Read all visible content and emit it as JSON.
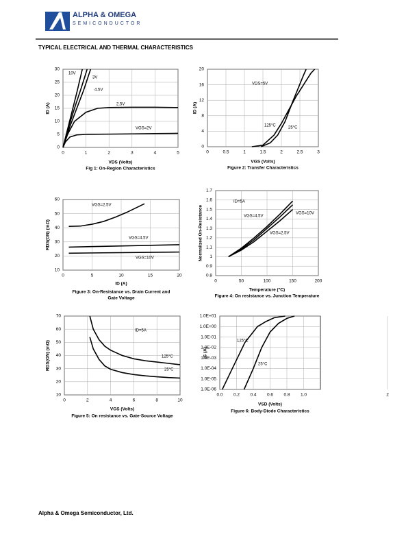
{
  "header": {
    "company": "ALPHA & OMEGA",
    "subtitle": "SEMICONDUCTOR"
  },
  "section_title": "TYPICAL ELECTRICAL AND THERMAL CHARACTERISTICS",
  "footer": "Alpha & Omega Semiconductor, Ltd.",
  "chart_data": [
    {
      "type": "line",
      "title": "Fig 1: On-Region Characteristics",
      "x_label": "VDS (Volts)",
      "y_label": "ID (A)",
      "grid": true,
      "xlim": [
        0,
        5
      ],
      "xticks": [
        0,
        1,
        2,
        3,
        4,
        5
      ],
      "ylim": [
        0,
        30
      ],
      "yticks": [
        0,
        5,
        10,
        15,
        20,
        25,
        30
      ],
      "series": [
        {
          "name": "10V",
          "color": "#000000",
          "x": [
            0,
            0.2,
            0.4,
            0.6,
            0.84
          ],
          "values": [
            0,
            7,
            14,
            21,
            30
          ]
        },
        {
          "name": "3V",
          "color": "#000000",
          "x": [
            0,
            0.3,
            0.6,
            0.9,
            1.2
          ],
          "values": [
            0,
            8,
            15,
            22,
            30
          ]
        },
        {
          "name": "4.5V",
          "color": "#000000",
          "x": [
            0,
            0.25,
            0.5,
            0.8,
            1.05
          ],
          "values": [
            0,
            8,
            15,
            23,
            30
          ]
        },
        {
          "name": "2.5V",
          "color": "#000000",
          "x": [
            0,
            0.2,
            0.5,
            1,
            1.5,
            2,
            3,
            4,
            5
          ],
          "values": [
            0,
            5,
            10,
            13.5,
            15,
            15.3,
            15.4,
            15.4,
            15.3
          ]
        },
        {
          "name": "VGS=2V",
          "color": "#000000",
          "x": [
            0,
            0.1,
            0.3,
            0.6,
            1,
            2,
            3,
            4,
            5
          ],
          "values": [
            0,
            2,
            4,
            4.8,
            5,
            5.1,
            5.2,
            5.3,
            5.4
          ]
        }
      ]
    },
    {
      "type": "line",
      "title": "Figure 2: Transfer Characteristics",
      "x_label": "VGS (Volts)",
      "y_label": "ID (A)",
      "grid": true,
      "annotation": "VDS=5V",
      "xlim": [
        0,
        3
      ],
      "xticks": [
        0,
        0.5,
        1,
        1.5,
        2,
        2.5,
        3
      ],
      "ylim": [
        0,
        20
      ],
      "yticks": [
        0,
        4,
        8,
        12,
        16,
        20
      ],
      "series": [
        {
          "name": "125°C",
          "color": "#000000",
          "x": [
            1.2,
            1.5,
            1.8,
            2.0,
            2.2,
            2.4,
            2.6,
            2.8,
            2.9
          ],
          "values": [
            0,
            0.4,
            3,
            6,
            9.5,
            13,
            16,
            19,
            20
          ]
        },
        {
          "name": "25°C",
          "color": "#000000",
          "x": [
            1.45,
            1.7,
            1.9,
            2.1,
            2.3,
            2.45,
            2.6,
            2.67
          ],
          "values": [
            0,
            1,
            3,
            6.5,
            11.5,
            15,
            18.5,
            20
          ]
        }
      ]
    },
    {
      "type": "line",
      "title": [
        "Figure 3: On-Resistance vs. Drain Current and",
        "Gate Voltage"
      ],
      "x_label": "ID (A)",
      "y_label": "RDS(ON) (mΩ)",
      "grid": true,
      "xlim": [
        0,
        20
      ],
      "xticks": [
        0,
        5,
        10,
        15,
        20
      ],
      "ylim": [
        10,
        60
      ],
      "yticks": [
        10,
        20,
        30,
        40,
        50,
        60
      ],
      "series": [
        {
          "name": "VGS=2.5V",
          "color": "#000000",
          "x": [
            1,
            3,
            5,
            7,
            9,
            11,
            13,
            14
          ],
          "values": [
            41,
            41.2,
            42.5,
            44.5,
            47.5,
            51,
            55,
            57
          ]
        },
        {
          "name": "VGS=4.5V",
          "color": "#000000",
          "x": [
            1,
            20
          ],
          "values": [
            26.3,
            28
          ]
        },
        {
          "name": "VGS=10V",
          "color": "#000000",
          "x": [
            1,
            20
          ],
          "values": [
            22,
            22.8
          ]
        }
      ]
    },
    {
      "type": "line",
      "title": "Figure 4: On resistance vs. Junction Temperature",
      "x_label": "Temperature (°C)",
      "y_label": "Normalized On-Resistance",
      "grid": true,
      "annotation": "ID=5A",
      "xlim": [
        0,
        200
      ],
      "xticks": [
        0,
        50,
        100,
        150,
        200
      ],
      "ylim": [
        0.8,
        1.7
      ],
      "yticks": [
        0.8,
        0.9,
        1,
        1.1,
        1.2,
        1.3,
        1.4,
        1.5,
        1.6,
        1.7
      ],
      "series": [
        {
          "name": "VGS=10V",
          "color": "#000000",
          "x": [
            25,
            50,
            75,
            100,
            125,
            150
          ],
          "values": [
            1,
            1.09,
            1.2,
            1.32,
            1.45,
            1.59
          ]
        },
        {
          "name": "VGS=4.5V",
          "color": "#000000",
          "x": [
            25,
            50,
            75,
            100,
            125,
            150
          ],
          "values": [
            1,
            1.08,
            1.18,
            1.3,
            1.42,
            1.55
          ]
        },
        {
          "name": "VGS=2.5V",
          "color": "#000000",
          "x": [
            25,
            50,
            75,
            100,
            125,
            150
          ],
          "values": [
            1,
            1.07,
            1.16,
            1.27,
            1.38,
            1.5
          ]
        }
      ]
    },
    {
      "type": "line",
      "title": "Figure 5: On resistance vs. Gate-Source Voltage",
      "x_label": "VGS (Volts)",
      "y_label": "RDS(ON) (mΩ)",
      "grid": true,
      "annotation": "ID=5A",
      "xlim": [
        0,
        10
      ],
      "xticks": [
        0,
        2,
        4,
        6,
        8,
        10
      ],
      "ylim": [
        10,
        70
      ],
      "yticks": [
        10,
        20,
        30,
        40,
        50,
        60,
        70
      ],
      "series": [
        {
          "name": "125°C",
          "color": "#000000",
          "x": [
            2.2,
            2.5,
            3,
            3.5,
            4,
            5,
            6,
            7,
            8,
            9,
            10
          ],
          "values": [
            70,
            60,
            52,
            47,
            44,
            40,
            37.5,
            36,
            35,
            34,
            33
          ]
        },
        {
          "name": "25°C",
          "color": "#000000",
          "x": [
            2.2,
            2.5,
            3,
            3.5,
            4,
            5,
            6,
            7,
            8,
            9,
            10
          ],
          "values": [
            54,
            45,
            37,
            32,
            29.5,
            27,
            25.5,
            24.5,
            23.8,
            23.2,
            22.8
          ]
        }
      ]
    },
    {
      "type": "line",
      "title": "Figure 6: Body-Diode Characteristics",
      "x_label": "VSD (Volts)",
      "y_label": "IS (A)",
      "grid": true,
      "yscale": "log",
      "xlim": [
        0,
        1.2
      ],
      "xticks": [
        {
          "value": 0,
          "label": "0.0"
        },
        0.2,
        0.4,
        0.6,
        0.8,
        {
          "value": 1,
          "label": "1.0"
        },
        2.0
      ],
      "ylim": [
        1e-06,
        10
      ],
      "yticks": [
        {
          "value": 1e-06,
          "label": "1.0E-06"
        },
        {
          "value": 1e-05,
          "label": "1.0E-05"
        },
        {
          "value": 0.0001,
          "label": "1.0E-04"
        },
        {
          "value": 0.001,
          "label": "1.0E-03"
        },
        {
          "value": 0.01,
          "label": "1.0E-02"
        },
        {
          "value": 0.1,
          "label": "1.0E-01"
        },
        {
          "value": 1,
          "label": "1.0E+00"
        },
        {
          "value": 10,
          "label": "1.0E+01"
        }
      ],
      "series": [
        {
          "name": "125°C",
          "color": "#000000",
          "x": [
            0.03,
            0.15,
            0.3,
            0.45,
            0.55,
            0.65,
            0.78
          ],
          "values": [
            1e-06,
            0.0001,
            0.03,
            1,
            3,
            7,
            10
          ]
        },
        {
          "name": "25°C",
          "color": "#000000",
          "x": [
            0.29,
            0.4,
            0.5,
            0.6,
            0.7,
            0.8,
            0.89
          ],
          "values": [
            1e-06,
            0.0001,
            0.01,
            0.3,
            2,
            6,
            10
          ]
        }
      ]
    }
  ]
}
